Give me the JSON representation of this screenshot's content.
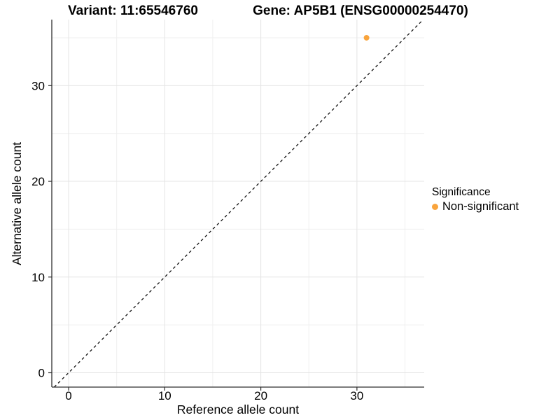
{
  "titles": {
    "variant": "Variant: 11:65546760",
    "gene": "Gene: AP5B1 (ENSG00000254470)"
  },
  "chart_data": {
    "type": "scatter",
    "xlabel": "Reference allele count",
    "ylabel": "Alternative allele count",
    "xticks": [
      0,
      10,
      20,
      30
    ],
    "yticks": [
      0,
      10,
      20,
      30
    ],
    "xlim": [
      -1.75,
      37.0
    ],
    "ylim": [
      -1.5,
      36.9
    ],
    "minor_step": 5,
    "grid": "major and minor, light gray on white",
    "points": [
      {
        "x": 31,
        "y": 35,
        "series": "Non-significant"
      }
    ],
    "abline": {
      "slope": 1,
      "intercept": 0,
      "style": "dashed",
      "color": "#111111"
    },
    "legend": {
      "title": "Significance",
      "position": "right",
      "items": [
        {
          "label": "Non-significant",
          "color": "#F9A43C"
        }
      ]
    },
    "style": {
      "grid_major": "#e4e4e4",
      "grid_minor": "#efefef",
      "axis": "#2f2f2f",
      "text": "#000000",
      "point_radius": 4,
      "tick_label_size": 17,
      "axis_label_size": 17.5
    }
  }
}
